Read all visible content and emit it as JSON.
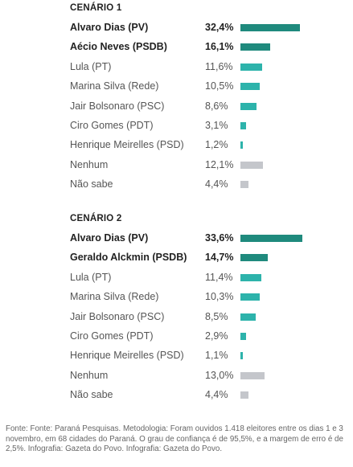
{
  "chart_data": [
    {
      "type": "bar",
      "orientation": "horizontal",
      "title": "CENÁRIO 1",
      "xlim": [
        0,
        35
      ],
      "categories": [
        "Alvaro Dias (PV)",
        "Aécio Neves (PSDB)",
        "Lula (PT)",
        "Marina Silva (Rede)",
        "Jair Bolsonaro (PSC)",
        "Ciro Gomes (PDT)",
        "Henrique Meirelles (PSD)",
        "Nenhum",
        "Não sabe"
      ],
      "values": [
        32.4,
        16.1,
        11.6,
        10.5,
        8.6,
        3.1,
        1.2,
        12.1,
        4.4
      ],
      "value_labels": [
        "32,4%",
        "16,1%",
        "11,6%",
        "10,5%",
        "8,6%",
        "3,1%",
        "1,2%",
        "12,1%",
        "4,4%"
      ],
      "bar_colors": [
        "#1f8a7d",
        "#1f8a7d",
        "#2db3ab",
        "#2db3ab",
        "#2db3ab",
        "#2db3ab",
        "#2db3ab",
        "#c4c6cb",
        "#c4c6cb"
      ],
      "bold": [
        true,
        true,
        false,
        false,
        false,
        false,
        false,
        false,
        false
      ]
    },
    {
      "type": "bar",
      "orientation": "horizontal",
      "title": "CENÁRIO 2",
      "xlim": [
        0,
        35
      ],
      "categories": [
        "Alvaro Dias (PV)",
        "Geraldo Alckmin (PSDB)",
        "Lula (PT)",
        "Marina Silva (Rede)",
        "Jair Bolsonaro (PSC)",
        "Ciro Gomes (PDT)",
        "Henrique Meirelles (PSD)",
        "Nenhum",
        "Não sabe"
      ],
      "values": [
        33.6,
        14.7,
        11.4,
        10.3,
        8.5,
        2.9,
        1.1,
        13.0,
        4.4
      ],
      "value_labels": [
        "33,6%",
        "14,7%",
        "11,4%",
        "10,3%",
        "8,5%",
        "2,9%",
        "1,1%",
        "13,0%",
        "4,4%"
      ],
      "bar_colors": [
        "#1f8a7d",
        "#1f8a7d",
        "#2db3ab",
        "#2db3ab",
        "#2db3ab",
        "#2db3ab",
        "#2db3ab",
        "#c4c6cb",
        "#c4c6cb"
      ],
      "bold": [
        true,
        true,
        false,
        false,
        false,
        false,
        false,
        false,
        false
      ]
    }
  ],
  "footer": "Fonte: Fonte: Paraná Pesquisas. Metodologia: Foram ouvidos 1.418 eleitores entre os dias 1 e 3 novembro, em 68 cidades do Paraná. O grau de confiança é de 95,5%, e a margem de erro é de 2,5%. Infografia: Gazeta do Povo. Infografia: Gazeta do Povo."
}
